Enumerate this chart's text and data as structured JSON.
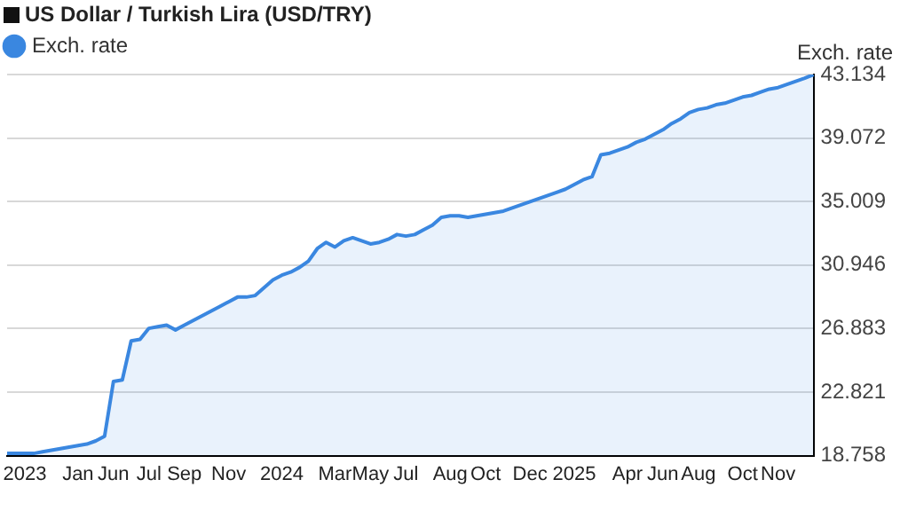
{
  "chart_data": {
    "type": "area",
    "title": "US Dollar / Turkish Lira (USD/TRY)",
    "ylabel": "Exch. rate",
    "categories": [
      null,
      null,
      "2023",
      null,
      null,
      null,
      null,
      null,
      "Jan",
      null,
      null,
      null,
      "Jun",
      null,
      null,
      null,
      "Jul",
      null,
      null,
      null,
      "Sep",
      null,
      null,
      null,
      null,
      "Nov",
      null,
      null,
      null,
      null,
      null,
      "2024",
      null,
      null,
      null,
      null,
      null,
      "Mar",
      null,
      null,
      null,
      "May",
      null,
      null,
      null,
      "Jul",
      null,
      null,
      null,
      null,
      "Aug",
      null,
      null,
      null,
      "Oct",
      null,
      null,
      null,
      null,
      "Dec",
      null,
      null,
      null,
      null,
      "2025",
      null,
      null,
      null,
      null,
      null,
      "Apr",
      null,
      null,
      null,
      "Jun",
      null,
      null,
      null,
      "Aug",
      null,
      null,
      null,
      null,
      "Oct",
      null,
      null,
      null,
      "Nov",
      null,
      null,
      null,
      null
    ],
    "series": [
      {
        "name": "Exch. rate",
        "color": "#3a87e0",
        "values": [
          18.9,
          18.9,
          18.9,
          18.9,
          19.0,
          19.1,
          19.2,
          19.3,
          19.4,
          19.5,
          19.7,
          20.0,
          23.5,
          23.6,
          26.1,
          26.2,
          26.9,
          27.0,
          27.1,
          26.8,
          27.1,
          27.4,
          27.7,
          28.0,
          28.3,
          28.6,
          28.9,
          28.9,
          29.0,
          29.5,
          30.0,
          30.3,
          30.5,
          30.8,
          31.2,
          32.0,
          32.4,
          32.1,
          32.5,
          32.7,
          32.5,
          32.3,
          32.4,
          32.6,
          32.9,
          32.8,
          32.9,
          33.2,
          33.5,
          34.0,
          34.1,
          34.1,
          34.0,
          34.1,
          34.2,
          34.3,
          34.4,
          34.6,
          34.8,
          35.0,
          35.2,
          35.4,
          35.6,
          35.8,
          36.1,
          36.4,
          36.6,
          38.0,
          38.1,
          38.3,
          38.5,
          38.8,
          39.0,
          39.3,
          39.6,
          40.0,
          40.3,
          40.7,
          40.9,
          41.0,
          41.2,
          41.3,
          41.5,
          41.7,
          41.8,
          42.0,
          42.2,
          42.3,
          42.5,
          42.7,
          42.9,
          43.13
        ]
      }
    ],
    "ylim": [
      18.758,
      43.134
    ],
    "yticks": [
      18.758,
      22.821,
      26.883,
      30.946,
      35.009,
      39.072,
      43.134
    ],
    "grid": "y",
    "legend": "top left",
    "marker": "none"
  }
}
